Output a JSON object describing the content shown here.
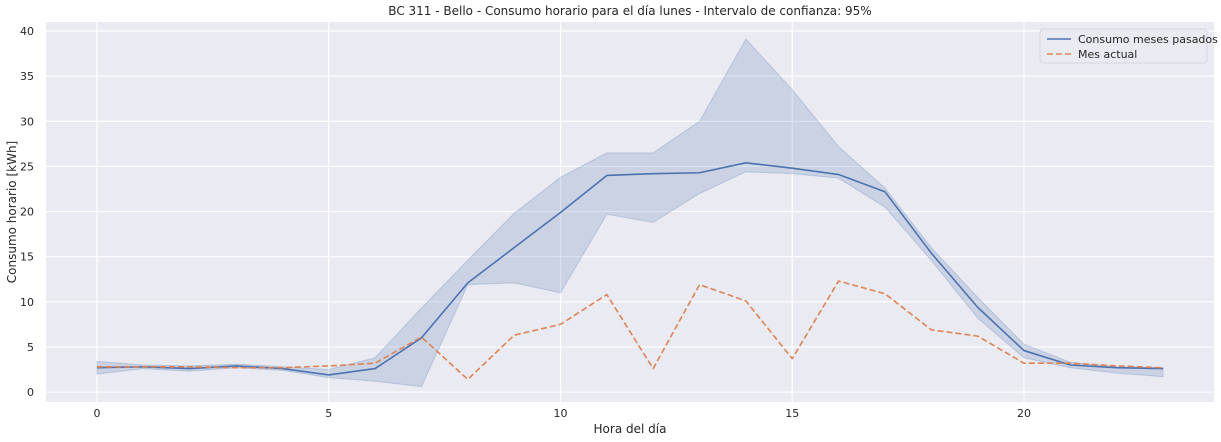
{
  "chart_data": {
    "type": "line",
    "title": "BC 311 - Bello - Consumo horario para el día lunes - Intervalo de confianza: 95%",
    "xlabel": "Hora del día",
    "ylabel": "Consumo horario [kWh]",
    "xlim": [
      -1.1,
      24.1
    ],
    "ylim": [
      -1.1,
      41
    ],
    "xticks": [
      0,
      5,
      10,
      15,
      20
    ],
    "yticks": [
      0,
      5,
      10,
      15,
      20,
      25,
      30,
      35,
      40
    ],
    "grid": true,
    "legend_position": "top-right",
    "x": [
      0,
      1,
      2,
      3,
      4,
      5,
      6,
      7,
      8,
      9,
      10,
      11,
      12,
      13,
      14,
      15,
      16,
      17,
      18,
      19,
      20,
      21,
      22,
      23
    ],
    "series": [
      {
        "name": "Consumo meses pasados",
        "style": "solid",
        "color": "#4c72b0",
        "values": [
          2.7,
          2.8,
          2.6,
          2.9,
          2.6,
          1.9,
          2.6,
          6.0,
          12.1,
          16.0,
          19.9,
          24.0,
          24.2,
          24.3,
          25.4,
          24.8,
          24.1,
          22.2,
          15.4,
          9.4,
          4.6,
          3.0,
          2.7,
          2.6
        ],
        "ci_lower": [
          2.0,
          2.6,
          2.3,
          2.7,
          2.4,
          1.6,
          1.2,
          0.6,
          11.9,
          12.1,
          11.0,
          19.7,
          18.8,
          22.0,
          24.4,
          24.2,
          23.7,
          20.5,
          14.6,
          8.2,
          3.8,
          2.7,
          2.1,
          1.7
        ],
        "ci_upper": [
          3.4,
          3.0,
          2.9,
          3.1,
          2.8,
          2.5,
          3.8,
          9.3,
          14.6,
          19.8,
          23.8,
          26.5,
          26.5,
          30.0,
          39.1,
          33.5,
          27.2,
          22.6,
          16.0,
          10.5,
          5.3,
          3.3,
          2.8,
          2.7
        ]
      },
      {
        "name": "Mes actual",
        "style": "dashed",
        "color": "#dd8452",
        "values": [
          2.8,
          2.8,
          2.8,
          2.7,
          2.7,
          2.9,
          3.2,
          6.1,
          1.4,
          6.3,
          7.5,
          10.8,
          2.6,
          11.9,
          10.1,
          3.7,
          12.3,
          10.9,
          6.9,
          6.2,
          3.2,
          3.2,
          2.9,
          2.7
        ]
      }
    ]
  }
}
